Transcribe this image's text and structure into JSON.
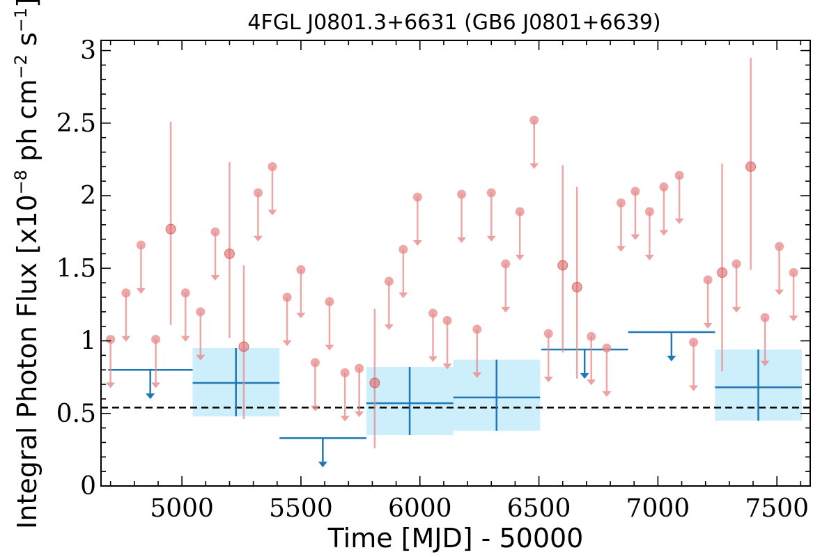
{
  "chart_data": {
    "type": "scatter",
    "title": "4FGL J0801.3+6631 (GB6 J0801+6639)",
    "xlabel": "Time [MJD] - 50000",
    "ylabel": "Integral Photon Flux [x10",
    "ylabel_sup1": "−8",
    "ylabel_mid": " ph cm",
    "ylabel_sup2": "−2",
    "ylabel_mid2": " s",
    "ylabel_sup3": "−1",
    "ylabel_end": "]",
    "xlim": [
      4660,
      7640
    ],
    "ylim": [
      0,
      3.07
    ],
    "xticks": [
      5000,
      5500,
      6000,
      6500,
      7000,
      7500
    ],
    "xtick_labels": [
      "5000",
      "5500",
      "6000",
      "6500",
      "7000",
      "7500"
    ],
    "yticks": [
      0,
      0.5,
      1,
      1.5,
      2,
      2.5,
      3
    ],
    "ytick_labels": [
      "0",
      "0.5",
      "1",
      "1.5",
      "2",
      "2.5",
      "3"
    ],
    "reference_level": 0.54,
    "colors": {
      "fine": "#e88a8a",
      "coarse": "#1f77b4",
      "band": "#cdeefb",
      "reference": "#000000"
    },
    "fine_bin_upper_limits": [
      {
        "x": 4700,
        "y": 1.01
      },
      {
        "x": 4765,
        "y": 1.33
      },
      {
        "x": 4828,
        "y": 1.66
      },
      {
        "x": 4890,
        "y": 1.01
      },
      {
        "x": 5015,
        "y": 1.33
      },
      {
        "x": 5078,
        "y": 1.2
      },
      {
        "x": 5140,
        "y": 1.75
      },
      {
        "x": 5320,
        "y": 2.02
      },
      {
        "x": 5380,
        "y": 2.2
      },
      {
        "x": 5442,
        "y": 1.3
      },
      {
        "x": 5500,
        "y": 1.49
      },
      {
        "x": 5560,
        "y": 0.85
      },
      {
        "x": 5620,
        "y": 1.27
      },
      {
        "x": 5685,
        "y": 0.78
      },
      {
        "x": 5745,
        "y": 0.81
      },
      {
        "x": 5870,
        "y": 1.41
      },
      {
        "x": 5930,
        "y": 1.63
      },
      {
        "x": 5990,
        "y": 1.99
      },
      {
        "x": 6055,
        "y": 1.19
      },
      {
        "x": 6115,
        "y": 1.14
      },
      {
        "x": 6175,
        "y": 2.01
      },
      {
        "x": 6240,
        "y": 1.08
      },
      {
        "x": 6300,
        "y": 2.02
      },
      {
        "x": 6360,
        "y": 1.53
      },
      {
        "x": 6420,
        "y": 1.89
      },
      {
        "x": 6480,
        "y": 2.52
      },
      {
        "x": 6540,
        "y": 1.05
      },
      {
        "x": 6720,
        "y": 1.03
      },
      {
        "x": 6785,
        "y": 0.95
      },
      {
        "x": 6845,
        "y": 1.95
      },
      {
        "x": 6905,
        "y": 2.03
      },
      {
        "x": 6965,
        "y": 1.89
      },
      {
        "x": 7025,
        "y": 2.06
      },
      {
        "x": 7090,
        "y": 2.14
      },
      {
        "x": 7150,
        "y": 0.99
      },
      {
        "x": 7210,
        "y": 1.42
      },
      {
        "x": 7330,
        "y": 1.53
      },
      {
        "x": 7450,
        "y": 1.16
      },
      {
        "x": 7510,
        "y": 1.65
      },
      {
        "x": 7570,
        "y": 1.47
      }
    ],
    "fine_bin_detections": [
      {
        "x": 4953,
        "y": 1.77,
        "ylo": 1.11,
        "yhi": 2.51
      },
      {
        "x": 5200,
        "y": 1.6,
        "ylo": 1.02,
        "yhi": 2.23
      },
      {
        "x": 5260,
        "y": 0.96,
        "ylo": 0.46,
        "yhi": 1.52
      },
      {
        "x": 5810,
        "y": 0.71,
        "ylo": 0.26,
        "yhi": 1.22
      },
      {
        "x": 6600,
        "y": 1.52,
        "ylo": 0.92,
        "yhi": 2.21
      },
      {
        "x": 6660,
        "y": 1.37,
        "ylo": 0.74,
        "yhi": 2.06
      },
      {
        "x": 7270,
        "y": 1.47,
        "ylo": 0.79,
        "yhi": 2.22
      },
      {
        "x": 7390,
        "y": 2.2,
        "ylo": 1.49,
        "yhi": 2.95
      }
    ],
    "coarse_bin_upper_limits": [
      {
        "x0": 4690,
        "x1": 5045,
        "y": 0.8,
        "xarrow": 4867
      },
      {
        "x0": 5410,
        "x1": 5775,
        "y": 0.33,
        "xarrow": 5592
      },
      {
        "x0": 6510,
        "x1": 6875,
        "y": 0.94,
        "xarrow": 6692
      },
      {
        "x0": 6875,
        "x1": 7240,
        "y": 1.06,
        "xarrow": 7057
      }
    ],
    "coarse_bin_detections": [
      {
        "x0": 5045,
        "x1": 5410,
        "x": 5227,
        "y": 0.71,
        "ylo": 0.48,
        "yhi": 0.95
      },
      {
        "x0": 5775,
        "x1": 6140,
        "x": 5957,
        "y": 0.57,
        "ylo": 0.35,
        "yhi": 0.82
      },
      {
        "x0": 6140,
        "x1": 6505,
        "x": 6322,
        "y": 0.61,
        "ylo": 0.38,
        "yhi": 0.87
      },
      {
        "x0": 7240,
        "x1": 7605,
        "x": 7422,
        "y": 0.68,
        "ylo": 0.45,
        "yhi": 0.94
      }
    ]
  }
}
